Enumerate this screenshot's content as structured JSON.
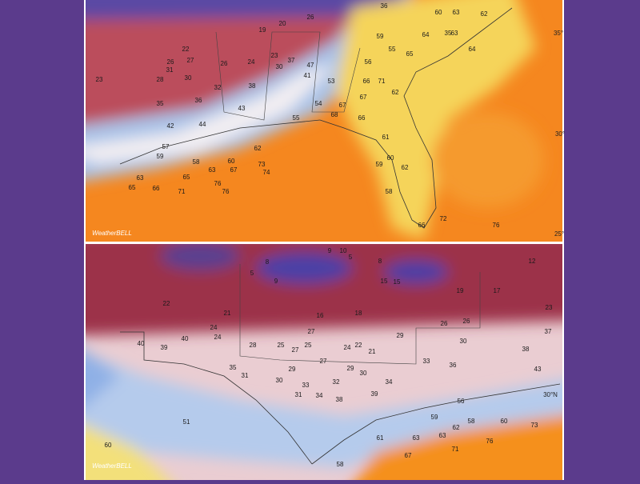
{
  "top_map": {
    "labels": [
      36,
      60,
      63,
      62,
      26,
      19,
      20,
      35,
      64,
      63,
      22,
      26,
      27,
      31,
      26,
      24,
      23,
      30,
      37,
      47,
      59,
      55,
      64,
      65,
      23,
      28,
      30,
      32,
      41,
      53,
      56,
      66,
      71,
      35,
      36,
      38,
      43,
      54,
      67,
      67,
      62,
      42,
      44,
      55,
      68,
      66,
      61,
      57,
      62,
      59,
      58,
      60,
      73,
      74,
      63,
      67,
      63,
      65,
      76,
      76,
      65,
      66,
      71,
      59,
      60,
      62,
      58,
      72,
      76,
      66
    ],
    "lat_labels": [
      "35°",
      "30°",
      "25°"
    ],
    "logo": "WeatherBELL"
  },
  "bottom_map": {
    "labels": [
      8,
      9,
      10,
      5,
      8,
      12,
      5,
      9,
      15,
      15,
      19,
      17,
      23,
      22,
      21,
      16,
      18,
      26,
      26,
      24,
      24,
      27,
      29,
      30,
      37,
      40,
      39,
      40,
      28,
      25,
      27,
      25,
      24,
      22,
      21,
      38,
      27,
      33,
      36,
      35,
      29,
      29,
      30,
      30,
      31,
      32,
      34,
      43,
      33,
      31,
      34,
      38,
      39,
      56,
      59,
      58,
      60,
      73,
      61,
      63,
      63,
      62,
      51,
      60,
      67,
      71,
      76,
      58
    ],
    "lat_labels": [
      "30°N"
    ],
    "logo": "WeatherBELL"
  }
}
